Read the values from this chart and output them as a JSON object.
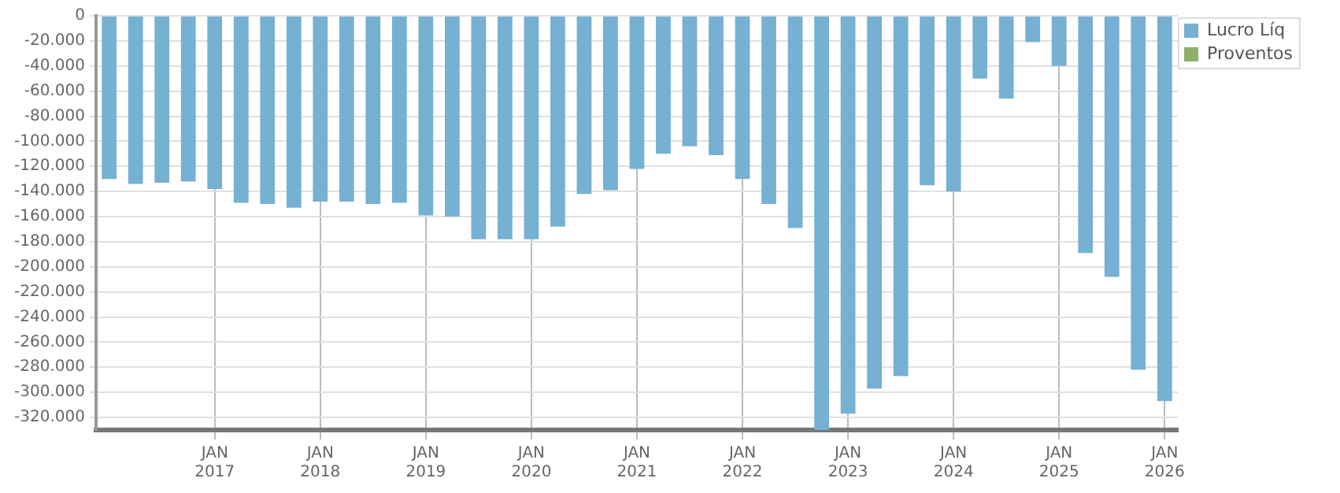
{
  "chart_data": {
    "type": "bar",
    "categories": [
      null,
      null,
      null,
      null,
      "JAN 2017",
      null,
      null,
      null,
      "JAN 2018",
      null,
      null,
      null,
      "JAN 2019",
      null,
      null,
      null,
      "JAN 2020",
      null,
      null,
      null,
      "JAN 2021",
      null,
      null,
      null,
      "JAN 2022",
      null,
      null,
      null,
      "JAN 2023",
      null,
      null,
      null,
      "JAN 2024",
      null,
      null,
      null,
      "JAN 2025",
      null,
      null,
      null,
      "JAN 2026"
    ],
    "series": [
      {
        "name": "Lucro Líq",
        "color": "#76b0d3",
        "values": [
          -130000,
          -134000,
          -133000,
          -132000,
          -138000,
          -149000,
          -150000,
          -153000,
          -148000,
          -148000,
          -150000,
          -149000,
          -159000,
          -160000,
          -178000,
          -178000,
          -178000,
          -168000,
          -142000,
          -139000,
          -122000,
          -110000,
          -104000,
          -111000,
          -130000,
          -150000,
          -169000,
          -330000,
          -317000,
          -297000,
          -287000,
          -135000,
          -140000,
          -50000,
          -66000,
          -21000,
          -40000,
          -189000,
          -208000,
          -282000,
          -307000
        ]
      },
      {
        "name": "Proventos",
        "color": "#8cb06a",
        "values": [
          null,
          null,
          null,
          null,
          null,
          null,
          null,
          null,
          null,
          null,
          null,
          null,
          null,
          null,
          null,
          null,
          null,
          null,
          null,
          null,
          null,
          null,
          null,
          null,
          null,
          null,
          null,
          null,
          null,
          null,
          null,
          null,
          null,
          null,
          null,
          null,
          null,
          null,
          null,
          null,
          null
        ]
      }
    ],
    "ylim": [
      -330000,
      0
    ],
    "yticks": [
      0,
      {
        "value": -20000,
        "label": "-20.000"
      },
      {
        "value": -40000,
        "label": "-40.000"
      },
      {
        "value": -60000,
        "label": "-60.000"
      },
      {
        "value": -80000,
        "label": "-80.000"
      },
      {
        "value": -100000,
        "label": "-100.000"
      },
      {
        "value": -120000,
        "label": "-120.000"
      },
      {
        "value": -140000,
        "label": "-140.000"
      },
      {
        "value": -160000,
        "label": "-160.000"
      },
      {
        "value": -180000,
        "label": "-180.000"
      },
      {
        "value": -200000,
        "label": "-200.000"
      },
      {
        "value": -220000,
        "label": "-220.000"
      },
      {
        "value": -240000,
        "label": "-240.000"
      },
      {
        "value": -260000,
        "label": "-260.000"
      },
      {
        "value": -280000,
        "label": "-280.000"
      },
      {
        "value": -300000,
        "label": "-300.000"
      },
      {
        "value": -320000,
        "label": "-320.000"
      }
    ],
    "grid": true,
    "legend": "top right"
  }
}
